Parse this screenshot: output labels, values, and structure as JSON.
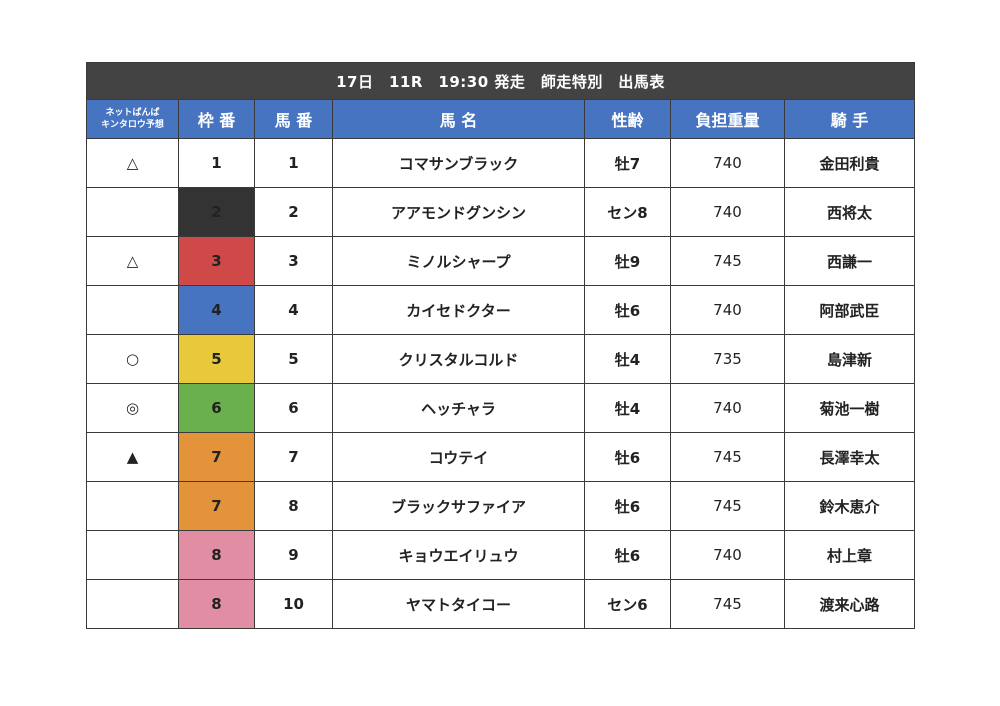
{
  "title": "17日　11R　19:30 発走　師走特別　出馬表",
  "headers": {
    "yoso_line1": "ネットばんば",
    "yoso_line2": "キンタロウ予想",
    "waku": "枠 番",
    "umaban": "馬 番",
    "name": "馬 名",
    "sex_age": "性齢",
    "weight": "負担重量",
    "jockey": "騎 手"
  },
  "waku_colors": {
    "1": "#ffffff",
    "2": "#333333",
    "3": "#d04949",
    "4": "#4674c1",
    "5": "#e8c93b",
    "6": "#6ab04c",
    "7": "#e39339",
    "8": "#e18ea4"
  },
  "rows": [
    {
      "mark": "△",
      "waku": "1",
      "umaban": "1",
      "name": "コマサンブラック",
      "sex_age": "牡7",
      "weight": "740",
      "jockey": "金田利貴"
    },
    {
      "mark": "",
      "waku": "2",
      "umaban": "2",
      "name": "アアモンドグンシン",
      "sex_age": "セン8",
      "weight": "740",
      "jockey": "西将太"
    },
    {
      "mark": "△",
      "waku": "3",
      "umaban": "3",
      "name": "ミノルシャープ",
      "sex_age": "牡9",
      "weight": "745",
      "jockey": "西謙一"
    },
    {
      "mark": "",
      "waku": "4",
      "umaban": "4",
      "name": "カイセドクター",
      "sex_age": "牡6",
      "weight": "740",
      "jockey": "阿部武臣"
    },
    {
      "mark": "○",
      "waku": "5",
      "umaban": "5",
      "name": "クリスタルコルド",
      "sex_age": "牡4",
      "weight": "735",
      "jockey": "島津新"
    },
    {
      "mark": "◎",
      "waku": "6",
      "umaban": "6",
      "name": "ヘッチャラ",
      "sex_age": "牡4",
      "weight": "740",
      "jockey": "菊池一樹"
    },
    {
      "mark": "▲",
      "waku": "7",
      "umaban": "7",
      "name": "コウテイ",
      "sex_age": "牡6",
      "weight": "745",
      "jockey": "長澤幸太"
    },
    {
      "mark": "",
      "waku": "7",
      "umaban": "8",
      "name": "ブラックサファイア",
      "sex_age": "牡6",
      "weight": "745",
      "jockey": "鈴木恵介"
    },
    {
      "mark": "",
      "waku": "8",
      "umaban": "9",
      "name": "キョウエイリュウ",
      "sex_age": "牡6",
      "weight": "740",
      "jockey": "村上章"
    },
    {
      "mark": "",
      "waku": "8",
      "umaban": "10",
      "name": "ヤマトタイコー",
      "sex_age": "セン6",
      "weight": "745",
      "jockey": "渡来心路"
    }
  ]
}
